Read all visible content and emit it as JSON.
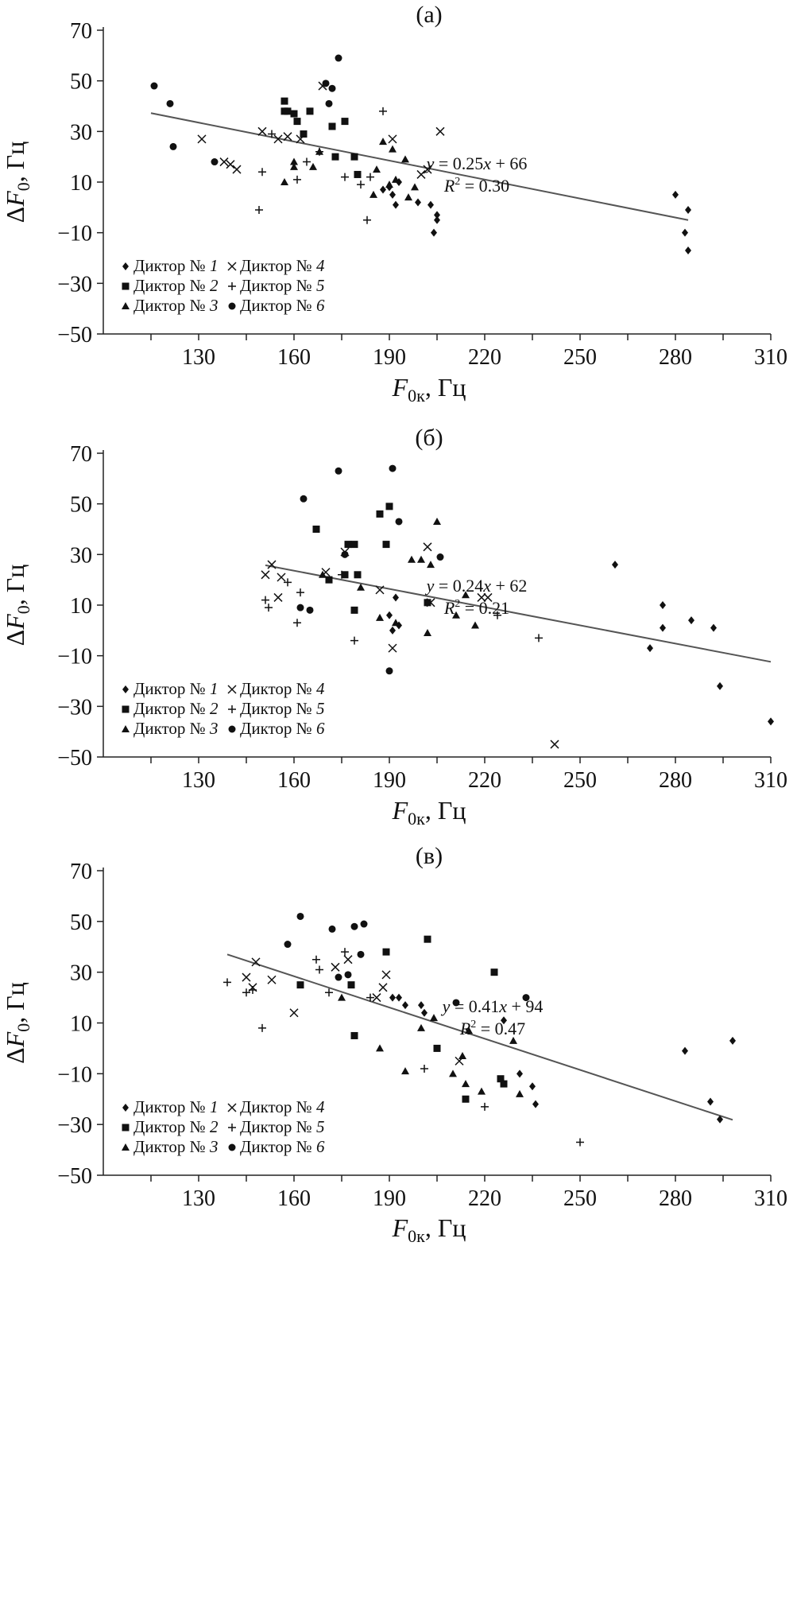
{
  "chart_data": [
    {
      "type": "scatter",
      "title": "(а)",
      "xlabel_main": "F",
      "xlabel_sub": "0к",
      "xlabel_unit": ", Гц",
      "ylabel_delta": "Δ",
      "ylabel_main": "F",
      "ylabel_sub": "0",
      "ylabel_unit": ", Гц",
      "xlim": [
        100,
        310
      ],
      "ylim": [
        -50,
        70
      ],
      "xticks": [
        "130",
        "160",
        "190",
        "220",
        "250",
        "280",
        "310"
      ],
      "yticks": [
        "70",
        "50",
        "30",
        "10",
        "−10",
        "−30",
        "−50"
      ],
      "grid": false,
      "legend_position": "bottom-left",
      "trendline": {
        "slope": -0.25,
        "intercept": 66,
        "x_range": [
          115,
          284
        ]
      },
      "equation": {
        "y_var": "y",
        "rhs": " = 0.25",
        "x_var": "x",
        "tail": " + 66",
        "r_var": "R",
        "r_sup": "2",
        "r_tail": " = 0.30"
      },
      "series": [
        {
          "name": "Диктор № ",
          "number": "1",
          "marker": "diamond",
          "points": [
            [
              188,
              7
            ],
            [
              190,
              8
            ],
            [
              191,
              5
            ],
            [
              192,
              1
            ],
            [
              193,
              10
            ],
            [
              199,
              2
            ],
            [
              203,
              1
            ],
            [
              204,
              -10
            ],
            [
              205,
              -3
            ],
            [
              205,
              -5
            ],
            [
              280,
              5
            ],
            [
              283,
              -10
            ],
            [
              284,
              -17
            ],
            [
              284,
              -1
            ]
          ]
        },
        {
          "name": "Диктор № ",
          "number": "2",
          "marker": "square",
          "points": [
            [
              157,
              42
            ],
            [
              157,
              38
            ],
            [
              158,
              38
            ],
            [
              160,
              37
            ],
            [
              161,
              34
            ],
            [
              163,
              29
            ],
            [
              165,
              38
            ],
            [
              172,
              32
            ],
            [
              173,
              20
            ],
            [
              176,
              34
            ],
            [
              179,
              20
            ],
            [
              180,
              13
            ]
          ]
        },
        {
          "name": "Диктор № ",
          "number": "3",
          "marker": "triangle",
          "points": [
            [
              157,
              10
            ],
            [
              160,
              18
            ],
            [
              160,
              16
            ],
            [
              166,
              16
            ],
            [
              168,
              22
            ],
            [
              185,
              5
            ],
            [
              186,
              15
            ],
            [
              188,
              26
            ],
            [
              190,
              9
            ],
            [
              191,
              23
            ],
            [
              192,
              11
            ],
            [
              195,
              19
            ],
            [
              196,
              4
            ],
            [
              198,
              8
            ]
          ]
        },
        {
          "name": "Диктор № ",
          "number": "4",
          "marker": "x",
          "points": [
            [
              131,
              27
            ],
            [
              138,
              18
            ],
            [
              140,
              17
            ],
            [
              142,
              15
            ],
            [
              150,
              30
            ],
            [
              155,
              27
            ],
            [
              158,
              28
            ],
            [
              162,
              27
            ],
            [
              169,
              48
            ],
            [
              191,
              27
            ],
            [
              200,
              13
            ],
            [
              202,
              15
            ],
            [
              206,
              30
            ]
          ]
        },
        {
          "name": "Диктор № ",
          "number": "5",
          "marker": "plus",
          "points": [
            [
              149,
              -1
            ],
            [
              150,
              14
            ],
            [
              153,
              29
            ],
            [
              161,
              11
            ],
            [
              164,
              18
            ],
            [
              168,
              22
            ],
            [
              176,
              12
            ],
            [
              181,
              9
            ],
            [
              183,
              -5
            ],
            [
              184,
              12
            ],
            [
              188,
              38
            ]
          ]
        },
        {
          "name": "Диктор № ",
          "number": "6",
          "marker": "circle",
          "points": [
            [
              116,
              48
            ],
            [
              121,
              41
            ],
            [
              122,
              24
            ],
            [
              135,
              18
            ],
            [
              170,
              49
            ],
            [
              171,
              41
            ],
            [
              172,
              47
            ],
            [
              174,
              59
            ]
          ]
        }
      ]
    },
    {
      "type": "scatter",
      "title": "(б)",
      "xlabel_main": "F",
      "xlabel_sub": "0к",
      "xlabel_unit": ", Гц",
      "ylabel_delta": "Δ",
      "ylabel_main": "F",
      "ylabel_sub": "0",
      "ylabel_unit": ", Гц",
      "xlim": [
        100,
        310
      ],
      "ylim": [
        -50,
        70
      ],
      "xticks": [
        "130",
        "160",
        "190",
        "220",
        "250",
        "280",
        "310"
      ],
      "yticks": [
        "70",
        "50",
        "30",
        "10",
        "−10",
        "−30",
        "−50"
      ],
      "grid": false,
      "legend_position": "bottom-left",
      "trendline": {
        "slope": -0.24,
        "intercept": 62,
        "x_range": [
          151,
          310
        ]
      },
      "equation": {
        "y_var": "y",
        "rhs": " = 0.24",
        "x_var": "x",
        "tail": " + 62",
        "r_var": "R",
        "r_sup": "2",
        "r_tail": " = 0.21"
      },
      "series": [
        {
          "name": "Диктор № ",
          "number": "1",
          "marker": "diamond",
          "points": [
            [
              190,
              6
            ],
            [
              191,
              0
            ],
            [
              192,
              13
            ],
            [
              193,
              2
            ],
            [
              261,
              26
            ],
            [
              272,
              -7
            ],
            [
              276,
              10
            ],
            [
              276,
              1
            ],
            [
              285,
              4
            ],
            [
              292,
              1
            ],
            [
              294,
              -22
            ],
            [
              310,
              -36
            ]
          ]
        },
        {
          "name": "Диктор № ",
          "number": "2",
          "marker": "square",
          "points": [
            [
              167,
              40
            ],
            [
              171,
              20
            ],
            [
              176,
              22
            ],
            [
              177,
              34
            ],
            [
              179,
              34
            ],
            [
              179,
              8
            ],
            [
              180,
              22
            ],
            [
              187,
              46
            ],
            [
              189,
              34
            ],
            [
              190,
              49
            ],
            [
              202,
              11
            ]
          ]
        },
        {
          "name": "Диктор № ",
          "number": "3",
          "marker": "triangle",
          "points": [
            [
              169,
              22
            ],
            [
              181,
              17
            ],
            [
              187,
              5
            ],
            [
              192,
              3
            ],
            [
              197,
              28
            ],
            [
              200,
              28
            ],
            [
              202,
              -1
            ],
            [
              203,
              26
            ],
            [
              205,
              43
            ],
            [
              211,
              6
            ],
            [
              214,
              14
            ],
            [
              217,
              2
            ]
          ]
        },
        {
          "name": "Диктор № ",
          "number": "4",
          "marker": "x",
          "points": [
            [
              151,
              22
            ],
            [
              153,
              26
            ],
            [
              155,
              13
            ],
            [
              156,
              21
            ],
            [
              170,
              23
            ],
            [
              176,
              31
            ],
            [
              187,
              16
            ],
            [
              191,
              -7
            ],
            [
              202,
              33
            ],
            [
              203,
              11
            ],
            [
              219,
              13
            ],
            [
              221,
              13
            ],
            [
              242,
              -45
            ]
          ]
        },
        {
          "name": "Диктор № ",
          "number": "5",
          "marker": "plus",
          "points": [
            [
              151,
              12
            ],
            [
              152,
              9
            ],
            [
              158,
              19
            ],
            [
              161,
              3
            ],
            [
              162,
              15
            ],
            [
              175,
              22
            ],
            [
              179,
              -4
            ],
            [
              224,
              6
            ],
            [
              237,
              -3
            ]
          ]
        },
        {
          "name": "Диктор № ",
          "number": "6",
          "marker": "circle",
          "points": [
            [
              162,
              9
            ],
            [
              163,
              52
            ],
            [
              165,
              8
            ],
            [
              174,
              63
            ],
            [
              176,
              30
            ],
            [
              190,
              -16
            ],
            [
              191,
              64
            ],
            [
              193,
              43
            ],
            [
              206,
              29
            ]
          ]
        }
      ]
    },
    {
      "type": "scatter",
      "title": "(в)",
      "xlabel_main": "F",
      "xlabel_sub": "0к",
      "xlabel_unit": ", Гц",
      "ylabel_delta": "Δ",
      "ylabel_main": "F",
      "ylabel_sub": "0",
      "ylabel_unit": ", Гц",
      "xlim": [
        100,
        310
      ],
      "ylim": [
        -50,
        70
      ],
      "xticks": [
        "130",
        "160",
        "190",
        "220",
        "250",
        "280",
        "310"
      ],
      "yticks": [
        "70",
        "50",
        "30",
        "10",
        "−10",
        "−30",
        "−50"
      ],
      "grid": false,
      "legend_position": "bottom-left",
      "trendline": {
        "slope": -0.41,
        "intercept": 94,
        "x_range": [
          139,
          298
        ]
      },
      "equation": {
        "y_var": "y",
        "rhs": " = 0.41",
        "x_var": "x",
        "tail": " + 94",
        "r_var": "R",
        "r_sup": "2",
        "r_tail": " = 0.47"
      },
      "series": [
        {
          "name": "Диктор № ",
          "number": "1",
          "marker": "diamond",
          "points": [
            [
              191,
              20
            ],
            [
              193,
              20
            ],
            [
              195,
              17
            ],
            [
              200,
              17
            ],
            [
              201,
              14
            ],
            [
              226,
              11
            ],
            [
              231,
              -10
            ],
            [
              235,
              -15
            ],
            [
              236,
              -22
            ],
            [
              283,
              -1
            ],
            [
              291,
              -21
            ],
            [
              294,
              -28
            ],
            [
              298,
              3
            ]
          ]
        },
        {
          "name": "Диктор № ",
          "number": "2",
          "marker": "square",
          "points": [
            [
              162,
              25
            ],
            [
              178,
              25
            ],
            [
              179,
              5
            ],
            [
              189,
              38
            ],
            [
              202,
              43
            ],
            [
              205,
              0
            ],
            [
              214,
              -20
            ],
            [
              223,
              30
            ],
            [
              225,
              -12
            ],
            [
              226,
              -14
            ]
          ]
        },
        {
          "name": "Диктор № ",
          "number": "3",
          "marker": "triangle",
          "points": [
            [
              175,
              20
            ],
            [
              187,
              0
            ],
            [
              195,
              -9
            ],
            [
              200,
              8
            ],
            [
              204,
              12
            ],
            [
              210,
              -10
            ],
            [
              213,
              -3
            ],
            [
              214,
              -14
            ],
            [
              215,
              7
            ],
            [
              219,
              -17
            ],
            [
              229,
              3
            ],
            [
              231,
              -18
            ]
          ]
        },
        {
          "name": "Диктор № ",
          "number": "4",
          "marker": "x",
          "points": [
            [
              145,
              28
            ],
            [
              147,
              24
            ],
            [
              148,
              34
            ],
            [
              153,
              27
            ],
            [
              160,
              14
            ],
            [
              173,
              32
            ],
            [
              177,
              35
            ],
            [
              186,
              20
            ],
            [
              188,
              24
            ],
            [
              189,
              29
            ],
            [
              212,
              -5
            ]
          ]
        },
        {
          "name": "Диктор № ",
          "number": "5",
          "marker": "plus",
          "points": [
            [
              139,
              26
            ],
            [
              145,
              22
            ],
            [
              147,
              23
            ],
            [
              150,
              8
            ],
            [
              167,
              35
            ],
            [
              168,
              31
            ],
            [
              171,
              22
            ],
            [
              176,
              38
            ],
            [
              184,
              20
            ],
            [
              201,
              -8
            ],
            [
              220,
              -23
            ],
            [
              250,
              -37
            ]
          ]
        },
        {
          "name": "Диктор № ",
          "number": "6",
          "marker": "circle",
          "points": [
            [
              158,
              41
            ],
            [
              162,
              52
            ],
            [
              172,
              47
            ],
            [
              174,
              28
            ],
            [
              177,
              29
            ],
            [
              179,
              48
            ],
            [
              181,
              37
            ],
            [
              182,
              49
            ],
            [
              211,
              18
            ],
            [
              233,
              20
            ]
          ]
        }
      ]
    }
  ]
}
